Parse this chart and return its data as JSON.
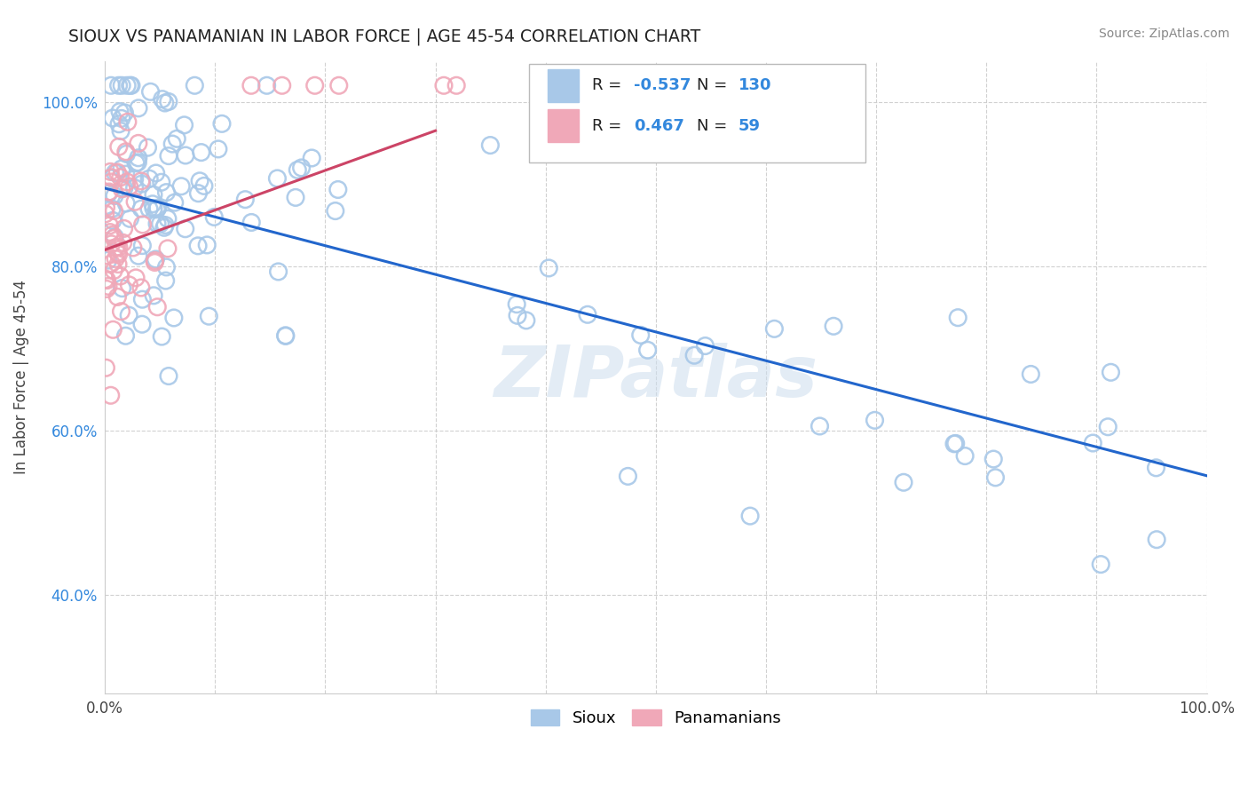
{
  "title": "SIOUX VS PANAMANIAN IN LABOR FORCE | AGE 45-54 CORRELATION CHART",
  "source_text": "Source: ZipAtlas.com",
  "ylabel": "In Labor Force | Age 45-54",
  "xlim": [
    0.0,
    1.0
  ],
  "ylim": [
    0.28,
    1.05
  ],
  "xtick_labels": [
    "0.0%",
    "",
    "",
    "",
    "",
    "",
    "",
    "",
    "",
    "",
    "100.0%"
  ],
  "ytick_labels": [
    "40.0%",
    "60.0%",
    "80.0%",
    "100.0%"
  ],
  "yticks": [
    0.4,
    0.6,
    0.8,
    1.0
  ],
  "blue_color": "#A8C8E8",
  "pink_color": "#F0A8B8",
  "blue_line_color": "#2266CC",
  "pink_line_color": "#CC4466",
  "legend_blue_R": "-0.537",
  "legend_blue_N": "130",
  "legend_pink_R": "0.467",
  "legend_pink_N": "59",
  "legend_label_blue": "Sioux",
  "legend_label_pink": "Panamanians",
  "watermark": "ZIPatlas",
  "blue_trend_x0": 0.0,
  "blue_trend_y0": 0.895,
  "blue_trend_x1": 1.0,
  "blue_trend_y1": 0.545,
  "pink_trend_x0": 0.0,
  "pink_trend_y0": 0.82,
  "pink_trend_x1": 0.3,
  "pink_trend_y1": 0.965
}
